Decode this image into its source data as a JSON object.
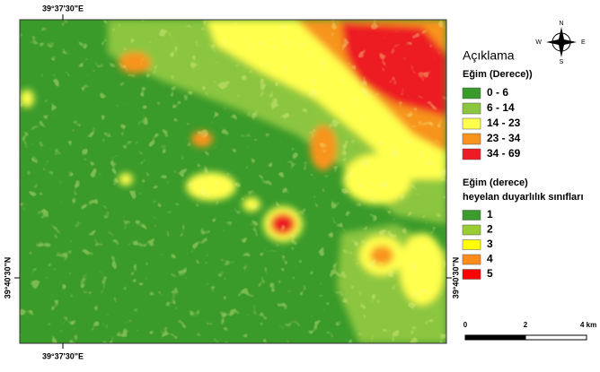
{
  "map": {
    "coordinates": {
      "top": "39°37'30\"E",
      "bottom": "39°37'30\"E",
      "left": "39°40'30\"N",
      "right": "39°40'30\"N"
    },
    "compass": {
      "n": "N",
      "e": "E",
      "s": "S",
      "w": "W"
    },
    "legend": {
      "title": "Açıklama",
      "slope": {
        "title": "Eğim (Derece))",
        "classes": [
          "0 - 6",
          "6 - 14",
          "14 - 23",
          "23 - 34",
          "34 - 69"
        ],
        "colors": [
          "#3a9a2a",
          "#8cc63f",
          "#ffff4d",
          "#f7941d",
          "#ed1c24"
        ]
      },
      "susceptibility": {
        "title_lines": [
          "Eğim (derece)",
          "heyelan duyarlılık sınıfları"
        ],
        "classes": [
          "1",
          "2",
          "3",
          "4",
          "5"
        ],
        "colors": [
          "#3c9a2f",
          "#9acd32",
          "#ffff00",
          "#ff8c1a",
          "#ff0000"
        ]
      }
    },
    "scale_bar": {
      "labels": [
        "0",
        "2",
        "4 km"
      ]
    }
  }
}
